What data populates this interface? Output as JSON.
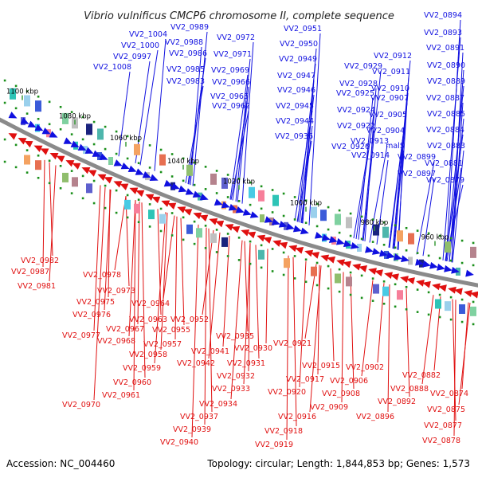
{
  "title": "Vibrio vulnificus CMCP6 chromosome II, complete sequence",
  "footer": {
    "accession": "Accession: NC_004460",
    "summary": "Topology: circular; Length: 1,844,853 bp; Genes: 1,573"
  },
  "colors": {
    "forward": "#1010e0",
    "reverse": "#e01010",
    "backbone": "#8a8a8a",
    "dots": "#1a8f1a",
    "kbp_tick": "#3a9a3a"
  },
  "kbp_labels": [
    "1100 kbp",
    "1080 kbp",
    "1060 kbp",
    "1040 kbp",
    "1020 kbp",
    "1000 kbp",
    "980 kbp",
    "960 kbp"
  ],
  "forward_genes": [
    "VV2_1004",
    "VV2_0989",
    "VV2_1000",
    "VV2_0988",
    "VV2_0997",
    "VV2_0986",
    "VV2_1008",
    "VV2_0985",
    "VV2_0983",
    "VV2_0972",
    "VV2_0971",
    "VV2_0969",
    "VV2_0966",
    "VV2_0965",
    "VV2_0962",
    "VV2_0951",
    "VV2_0950",
    "VV2_0949",
    "VV2_0947",
    "VV2_0946",
    "VV2_0945",
    "VV2_0944",
    "VV2_0936",
    "VV2_0929",
    "VV2_0928",
    "VV2_0925",
    "VV2_0924",
    "VV2_0922",
    "VV2_0926",
    "VV2_0912",
    "VV2_0911",
    "VV2_0910",
    "VV2_0907",
    "VV2_0905",
    "VV2_0904",
    "VV2_0913",
    "VV2_0914",
    "malS",
    "VV2_0899",
    "VV2_0897",
    "VV2_0894",
    "VV2_0893",
    "VV2_0891",
    "VV2_0890",
    "VV2_0889",
    "VV2_0887",
    "VV2_0885",
    "VV2_0884",
    "VV2_0883",
    "VV2_0881",
    "VV2_0879"
  ],
  "reverse_genes": [
    "VV2_0982",
    "VV2_0987",
    "VV2_0981",
    "VV2_0978",
    "VV2_0973",
    "VV2_0975",
    "VV2_0976",
    "VV2_0964",
    "VV2_0963",
    "VV2_0967",
    "VV2_0968",
    "VV2_0952",
    "VV2_0955",
    "VV2_0957",
    "VV2_0958",
    "VV2_0959",
    "VV2_0960",
    "VV2_0961",
    "VV2_0977",
    "VV2_0970",
    "VV2_0935",
    "VV2_0930",
    "VV2_0941",
    "VV2_0942",
    "VV2_0931",
    "VV2_0932",
    "VV2_0933",
    "VV2_0934",
    "VV2_0937",
    "VV2_0939",
    "VV2_0940",
    "VV2_0921",
    "VV2_0915",
    "VV2_0917",
    "VV2_0920",
    "VV2_0916",
    "VV2_0918",
    "VV2_0919",
    "VV2_0902",
    "VV2_0906",
    "VV2_0908",
    "VV2_0909",
    "VV2_0882",
    "VV2_0888",
    "VV2_0892",
    "VV2_0896",
    "VV2_0874",
    "VV2_0875",
    "VV2_0877",
    "VV2_0878"
  ]
}
